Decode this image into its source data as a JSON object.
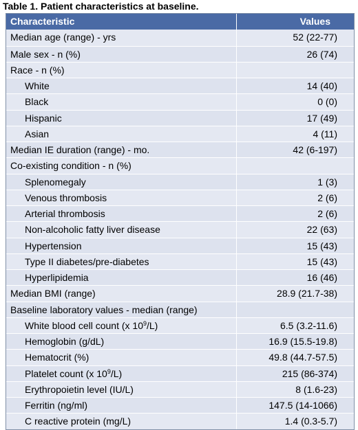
{
  "caption": "Table 1. Patient characteristics at baseline.",
  "header": {
    "characteristic": "Characteristic",
    "values": "Values"
  },
  "rows": [
    {
      "label": "Median age (range) - yrs",
      "value": "52 (22-77)",
      "indent": false
    },
    {
      "label": "Male sex - n (%)",
      "value": "26 (74)",
      "indent": false
    },
    {
      "label": "Race - n (%)",
      "value": "",
      "indent": false
    },
    {
      "label": "White",
      "value": "14 (40)",
      "indent": true
    },
    {
      "label": "Black",
      "value": "0 (0)",
      "indent": true
    },
    {
      "label": "Hispanic",
      "value": "17 (49)",
      "indent": true
    },
    {
      "label": "Asian",
      "value": "4 (11)",
      "indent": true
    },
    {
      "label": "Median IE duration (range) - mo.",
      "value": "42 (6-197)",
      "indent": false
    },
    {
      "label": "Co-existing condition - n (%)",
      "value": "",
      "indent": false
    },
    {
      "label": "Splenomegaly",
      "value": "1 (3)",
      "indent": true
    },
    {
      "label": "Venous thrombosis",
      "value": "2 (6)",
      "indent": true
    },
    {
      "label": "Arterial thrombosis",
      "value": "2 (6)",
      "indent": true
    },
    {
      "label": "Non-alcoholic fatty liver disease",
      "value": "22 (63)",
      "indent": true
    },
    {
      "label": "Hypertension",
      "value": "15 (43)",
      "indent": true
    },
    {
      "label": "Type II diabetes/pre-diabetes",
      "value": "15 (43)",
      "indent": true
    },
    {
      "label": "Hyperlipidemia",
      "value": "16 (46)",
      "indent": true
    },
    {
      "label": "Median BMI (range)",
      "value": "28.9 (21.7-38)",
      "indent": false
    },
    {
      "label": "Baseline laboratory values - median (range)",
      "value": "",
      "indent": false
    },
    {
      "label": "White blood cell count (x 10",
      "sup": "9",
      "label_after": "/L)",
      "value": "6.5 (3.2-11.6)",
      "indent": true
    },
    {
      "label": "Hemoglobin (g/dL)",
      "value": "16.9 (15.5-19.8)",
      "indent": true
    },
    {
      "label": "Hematocrit (%)",
      "value": "49.8 (44.7-57.5)",
      "indent": true
    },
    {
      "label": "Platelet count  (x 10",
      "sup": "9",
      "label_after": "/L)",
      "value": "215 (86-374)",
      "indent": true
    },
    {
      "label": "Erythropoietin level (IU/L)",
      "value": "8 (1.6-23)",
      "indent": true
    },
    {
      "label": "Ferritin (ng/ml)",
      "value": "147.5 (14-1066)",
      "indent": true
    },
    {
      "label": "C reactive protein (mg/L)",
      "value": "1.4 (0.3-5.7)",
      "indent": true
    }
  ]
}
